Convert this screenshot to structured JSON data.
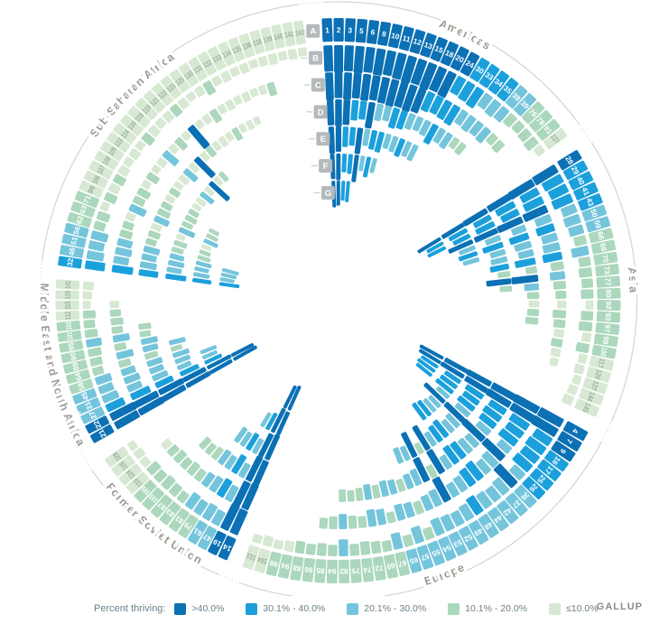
{
  "branding": {
    "logo": "GALLUP"
  },
  "legend": {
    "title": "Percent thriving:",
    "items": [
      {
        "label": ">40.0%",
        "color": "#0b70b4"
      },
      {
        "label": "30.1% - 40.0%",
        "color": "#1ba0dc"
      },
      {
        "label": "20.1% - 30.0%",
        "color": "#74c5dc"
      },
      {
        "label": "10.1% - 20.0%",
        "color": "#abd7bd"
      },
      {
        "label": "≤10.0%",
        "color": "#d7e8d3"
      }
    ]
  },
  "chart_data": {
    "type": "heatmap",
    "subtype": "radial-ring-heatmap",
    "description": "Percent thriving by country rank, grouped in regional arcs; concentric rings A-G, cell color and bar length encode thriving bucket.",
    "palette": [
      "#0b70b4",
      "#1ba0dc",
      "#74c5dc",
      "#abd7bd",
      "#d7e8d3"
    ],
    "category_labels": [
      ">40.0%",
      "30.1% - 40.0%",
      "20.1% - 30.0%",
      "10.1% - 20.0%",
      "≤10.0%"
    ],
    "height_by_category": [
      1.12,
      0.85,
      0.68,
      0.52,
      0.4
    ],
    "rings": [
      "A",
      "B",
      "C",
      "D",
      "E",
      "F",
      "G"
    ],
    "ring_label_angle": 354.7,
    "center": [
      374.5,
      333
    ],
    "geometry": {
      "outer": 313,
      "pitch": 30,
      "band": 26,
      "arc_r": 331,
      "label_r": 326.5
    },
    "colors": {
      "arc": "#d9d0c4",
      "dashed_arc": "#e2dbd1",
      "region_label": "#9d9890",
      "ring_square": "#b4b9bc",
      "ring_square_text": "#ffffff",
      "num_light": "#ffffff",
      "num_dark": "#9ab0a2",
      "tick": "#c9cdcf"
    },
    "regions": [
      {
        "key": "americas",
        "label": "Americas",
        "start": 356.5,
        "end": 54.5,
        "ranks": [
          1,
          2,
          3,
          5,
          6,
          8,
          10,
          11,
          12,
          13,
          15,
          18,
          20,
          24,
          30,
          33,
          34,
          35,
          38,
          39,
          76,
          78,
          91,
          137
        ],
        "cells": {
          "A": "000000000000001111223334",
          "B": "000000000000011122233334",
          "C": "000000000001111222233...",
          "D": "000110221122212233......",
          "E": "0011021122122...........",
          "F": "00110212................",
          "G": "0011...................."
        }
      },
      {
        "key": "asia",
        "label": "Asia",
        "start": 57.5,
        "end": 114.5,
        "ranks": [
          28,
          29,
          40,
          41,
          43,
          50,
          59,
          66,
          68,
          70,
          73,
          77,
          80,
          92,
          93,
          97,
          99,
          100,
          117,
          120,
          127,
          144,
          145
        ],
        "cells": {
          "A": "01111223333333333344444",
          "B": "01112223233334334344444",
          "C": "01102122132334334344...",
          "D": "0110212213023433.......",
          "E": "011021221303...........",
          "F": "0110212................",
          "G": "011...................."
        }
      },
      {
        "key": "europe",
        "label": "Europe",
        "start": 117.5,
        "end": 200,
        "ranks": [
          4,
          7,
          9,
          16,
          17,
          25,
          26,
          36,
          37,
          42,
          44,
          48,
          49,
          52,
          53,
          54,
          55,
          57,
          65,
          67,
          69,
          72,
          74,
          75,
          82,
          84,
          85,
          86,
          88,
          94,
          98,
          104,
          111
        ],
        "cells": {
          "A": "000111122222222222233333333333344",
          "B": "001111202221222232323333233334444",
          "C": "00111202211220223223223323 3......",
          "D": "001112022112030223223233 3.......",
          "E": "00111202211203022................",
          "F": "00111202211......................",
          "G": "00111............................"
        }
      },
      {
        "key": "former-soviet-union",
        "label": "Former Soviet Union",
        "start": 203,
        "end": 236,
        "ranks": [
          14,
          19,
          47,
          61,
          79,
          81,
          83,
          87,
          103,
          105,
          110,
          124,
          126,
          128
        ],
        "cells": {
          "A": "00223333334444",
          "B": "00222233333444",
          "C": "002122333334..",
          "D": "002122333.....",
          "E": "002122........",
          "F": "0012..........",
          "G": "00............"
        }
      },
      {
        "key": "middle-east-north-africa",
        "label": "Middle East and North Africa",
        "start": 239.5,
        "end": 274.5,
        "ranks": [
          21,
          22,
          27,
          31,
          45,
          58,
          64,
          89,
          90,
          95,
          101,
          102,
          112,
          115,
          129,
          141
        ],
        "cells": {
          "A": "0022233333334444",
          "B": "0012223332333444",
          "C": "00122232323334..",
          "D": "00122232233.....",
          "E": "00122232........",
          "F": "00122...........",
          "G": "00.............."
        }
      },
      {
        "key": "sub-saharan-africa",
        "label": "Sub-Saharan Africa",
        "start": 277,
        "end": 353,
        "ranks": [
          32,
          46,
          51,
          56,
          62,
          63,
          71,
          96,
          106,
          107,
          108,
          109,
          113,
          114,
          116,
          118,
          119,
          121,
          122,
          123,
          125,
          130,
          131,
          132,
          133,
          134,
          135,
          136,
          138,
          139,
          140,
          142,
          143
        ],
        "cells": {
          "A": "122233344444444444444444444444444",
          "B": "122233434344443444344434444444444",
          "C": "1222334233434424340443444444 3...",
          "D": "12223342334344240434443444.......",
          "E": "122233423334424043...............",
          "F": "1222334233.......................",
          "G": "1222............................."
        }
      }
    ]
  }
}
